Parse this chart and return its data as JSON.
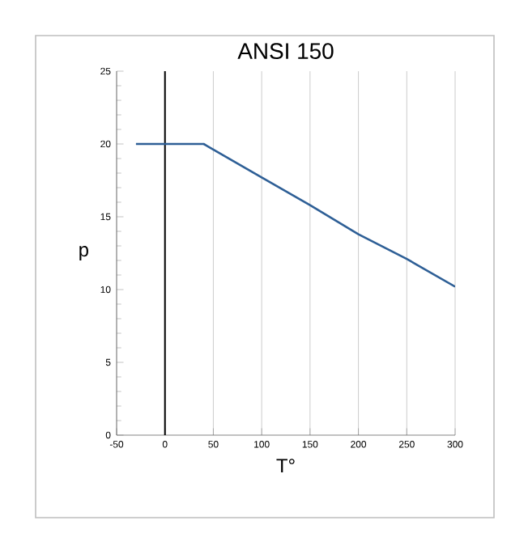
{
  "chart_data": {
    "type": "line",
    "title": "ANSI 150",
    "xlabel": "T°",
    "ylabel": "p",
    "x": [
      -30,
      40,
      100,
      150,
      200,
      250,
      300
    ],
    "series": [
      {
        "color": "#2e5f96",
        "values": [
          20,
          20,
          17.7,
          15.8,
          13.8,
          12.1,
          10.2
        ]
      }
    ],
    "xlim": [
      -50,
      300
    ],
    "ylim": [
      0,
      25
    ],
    "xticks": [
      -50,
      0,
      50,
      100,
      150,
      200,
      250,
      300
    ],
    "yticks": [
      0,
      5,
      10,
      15,
      20,
      25
    ],
    "grid": "x",
    "marker": "none",
    "line_style": "solid",
    "ref_lines": [
      {
        "axis": "x",
        "value": 0,
        "color": "#000000"
      }
    ]
  }
}
